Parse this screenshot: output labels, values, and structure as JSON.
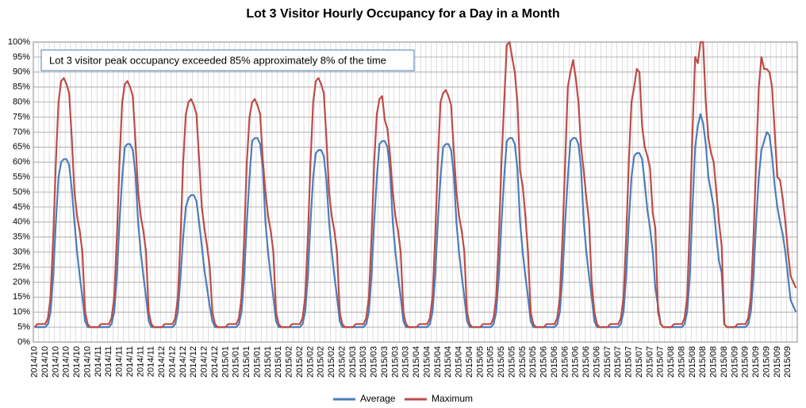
{
  "chart_data": {
    "type": "line",
    "title": "Lot 3 Visitor Hourly Occupancy for a Day in a Month",
    "annotation": "Lot 3 visitor peak occupancy exceeded 85% approximately 8% of the time",
    "categories": [
      "2014/10",
      null,
      null,
      null,
      "2014/10",
      null,
      null,
      null,
      "2014/10",
      null,
      null,
      null,
      "2014/10",
      null,
      null,
      null,
      "2014/10",
      null,
      null,
      null,
      "2014/10",
      null,
      null,
      null,
      "2014/11",
      null,
      null,
      null,
      "2014/11",
      null,
      null,
      null,
      "2014/11",
      null,
      null,
      null,
      "2014/11",
      null,
      null,
      null,
      "2014/11",
      null,
      null,
      null,
      "2014/11",
      null,
      null,
      null,
      "2014/12",
      null,
      null,
      null,
      "2014/12",
      null,
      null,
      null,
      "2014/12",
      null,
      null,
      null,
      "2014/12",
      null,
      null,
      null,
      "2014/12",
      null,
      null,
      null,
      "2014/12",
      null,
      null,
      null,
      "2015/01",
      null,
      null,
      null,
      "2015/01",
      null,
      null,
      null,
      "2015/01",
      null,
      null,
      null,
      "2015/01",
      null,
      null,
      null,
      "2015/01",
      null,
      null,
      null,
      "2015/01",
      null,
      null,
      null,
      "2015/02",
      null,
      null,
      null,
      "2015/02",
      null,
      null,
      null,
      "2015/02",
      null,
      null,
      null,
      "2015/02",
      null,
      null,
      null,
      "2015/02",
      null,
      null,
      null,
      "2015/02",
      null,
      null,
      null,
      "2015/03",
      null,
      null,
      null,
      "2015/03",
      null,
      null,
      null,
      "2015/03",
      null,
      null,
      null,
      "2015/03",
      null,
      null,
      null,
      "2015/03",
      null,
      null,
      null,
      "2015/03",
      null,
      null,
      null,
      "2015/04",
      null,
      null,
      null,
      "2015/04",
      null,
      null,
      null,
      "2015/04",
      null,
      null,
      null,
      "2015/04",
      null,
      null,
      null,
      "2015/04",
      null,
      null,
      null,
      "2015/04",
      null,
      null,
      null,
      "2015/05",
      null,
      null,
      null,
      "2015/05",
      null,
      null,
      null,
      "2015/05",
      null,
      null,
      null,
      "2015/05",
      null,
      null,
      null,
      "2015/05",
      null,
      null,
      null,
      "2015/05",
      null,
      null,
      null,
      "2015/06",
      null,
      null,
      null,
      "2015/06",
      null,
      null,
      null,
      "2015/06",
      null,
      null,
      null,
      "2015/06",
      null,
      null,
      null,
      "2015/06",
      null,
      null,
      null,
      "2015/06",
      null,
      null,
      null,
      "2015/07",
      null,
      null,
      null,
      "2015/07",
      null,
      null,
      null,
      "2015/07",
      null,
      null,
      null,
      "2015/07",
      null,
      null,
      null,
      "2015/07",
      null,
      null,
      null,
      "2015/07",
      null,
      null,
      null,
      "2015/08",
      null,
      null,
      null,
      "2015/08",
      null,
      null,
      null,
      "2015/08",
      null,
      null,
      null,
      "2015/08",
      null,
      null,
      null,
      "2015/08",
      null,
      null,
      null,
      "2015/08",
      null,
      null,
      null,
      "2015/09",
      null,
      null,
      null,
      "2015/09",
      null,
      null,
      null,
      "2015/09",
      null,
      null,
      null,
      "2015/09",
      null,
      null,
      null,
      "2015/09",
      null,
      null,
      null,
      "2015/09",
      null,
      null,
      null
    ],
    "series": [
      {
        "name": "Average",
        "color": "#4a7ebb",
        "values": [
          5,
          5,
          5,
          5,
          5,
          6,
          10,
          22,
          40,
          55,
          60,
          61,
          61,
          59,
          51,
          40,
          30,
          22,
          15,
          7,
          5,
          5,
          5,
          5,
          5,
          5,
          5,
          5,
          5,
          6,
          10,
          22,
          40,
          55,
          65,
          66,
          66,
          64,
          56,
          40,
          30,
          22,
          15,
          7,
          5,
          5,
          5,
          5,
          5,
          5,
          5,
          5,
          5,
          6,
          10,
          22,
          35,
          45,
          48,
          49,
          49,
          47,
          40,
          32,
          24,
          18,
          12,
          7,
          5,
          5,
          5,
          5,
          5,
          5,
          5,
          5,
          5,
          6,
          10,
          22,
          40,
          55,
          67,
          68,
          68,
          66,
          58,
          40,
          30,
          22,
          15,
          7,
          5,
          5,
          5,
          5,
          5,
          5,
          5,
          5,
          5,
          6,
          10,
          22,
          40,
          55,
          63,
          64,
          64,
          62,
          54,
          40,
          30,
          22,
          15,
          7,
          5,
          5,
          5,
          5,
          5,
          5,
          5,
          5,
          5,
          6,
          10,
          22,
          40,
          55,
          66,
          67,
          67,
          65,
          57,
          40,
          30,
          22,
          15,
          7,
          5,
          5,
          5,
          5,
          5,
          5,
          5,
          5,
          5,
          6,
          10,
          22,
          40,
          55,
          65,
          66,
          66,
          64,
          56,
          40,
          30,
          22,
          15,
          7,
          5,
          5,
          5,
          5,
          5,
          5,
          5,
          5,
          5,
          6,
          10,
          22,
          40,
          55,
          67,
          68,
          68,
          66,
          58,
          40,
          30,
          22,
          15,
          7,
          5,
          5,
          5,
          5,
          5,
          5,
          5,
          5,
          5,
          6,
          10,
          22,
          40,
          55,
          67,
          68,
          68,
          66,
          58,
          40,
          30,
          22,
          15,
          7,
          5,
          5,
          5,
          5,
          5,
          5,
          5,
          5,
          5,
          6,
          10,
          22,
          40,
          55,
          62,
          63,
          63,
          61,
          53,
          44,
          38,
          30,
          18,
          12,
          6,
          5,
          5,
          5,
          5,
          5,
          5,
          5,
          5,
          6,
          10,
          22,
          45,
          65,
          72,
          76,
          73,
          66,
          55,
          50,
          45,
          35,
          27,
          23,
          6,
          5,
          5,
          5,
          5,
          5,
          5,
          5,
          5,
          6,
          10,
          22,
          40,
          55,
          64,
          67,
          70,
          69,
          62,
          52,
          45,
          40,
          36,
          30,
          22,
          14,
          12,
          10
        ]
      },
      {
        "name": "Maximum",
        "color": "#be4b48",
        "values": [
          5,
          6,
          6,
          6,
          6,
          8,
          15,
          35,
          60,
          80,
          87,
          88,
          86,
          83,
          68,
          50,
          42,
          37,
          30,
          10,
          6,
          5,
          5,
          5,
          5,
          6,
          6,
          6,
          6,
          8,
          15,
          35,
          60,
          80,
          86,
          87,
          85,
          82,
          67,
          50,
          42,
          37,
          30,
          10,
          6,
          5,
          5,
          5,
          5,
          6,
          6,
          6,
          6,
          8,
          15,
          35,
          60,
          76,
          80,
          81,
          79,
          76,
          61,
          45,
          38,
          32,
          25,
          10,
          6,
          5,
          5,
          5,
          5,
          6,
          6,
          6,
          6,
          8,
          15,
          35,
          60,
          75,
          80,
          81,
          79,
          76,
          61,
          50,
          42,
          37,
          30,
          10,
          6,
          5,
          5,
          5,
          5,
          6,
          6,
          6,
          6,
          8,
          15,
          35,
          60,
          80,
          87,
          88,
          86,
          83,
          68,
          50,
          42,
          37,
          30,
          10,
          6,
          5,
          5,
          5,
          5,
          6,
          6,
          6,
          6,
          8,
          15,
          35,
          60,
          76,
          81,
          82,
          74,
          71,
          62,
          50,
          42,
          37,
          30,
          10,
          6,
          5,
          5,
          5,
          5,
          6,
          6,
          6,
          6,
          8,
          15,
          35,
          60,
          80,
          83,
          84,
          82,
          79,
          64,
          50,
          42,
          37,
          30,
          10,
          6,
          5,
          5,
          5,
          5,
          6,
          6,
          6,
          6,
          8,
          15,
          35,
          60,
          80,
          99,
          100,
          95,
          90,
          80,
          57,
          52,
          42,
          30,
          10,
          6,
          5,
          5,
          5,
          5,
          6,
          6,
          6,
          6,
          8,
          15,
          35,
          60,
          85,
          90,
          94,
          88,
          80,
          65,
          57,
          48,
          40,
          20,
          10,
          6,
          5,
          5,
          5,
          5,
          6,
          6,
          6,
          6,
          8,
          15,
          35,
          60,
          80,
          85,
          91,
          90,
          72,
          65,
          62,
          58,
          43,
          38,
          10,
          6,
          5,
          5,
          5,
          5,
          6,
          6,
          6,
          6,
          8,
          15,
          40,
          70,
          95,
          93,
          100,
          100,
          80,
          68,
          63,
          60,
          50,
          40,
          32,
          6,
          5,
          5,
          5,
          5,
          6,
          6,
          6,
          6,
          8,
          15,
          35,
          60,
          85,
          95,
          91,
          91,
          90,
          85,
          70,
          55,
          54,
          48,
          40,
          30,
          22,
          20,
          18
        ]
      }
    ],
    "ylim": [
      0,
      100
    ],
    "yticks": [
      {
        "value": 0,
        "label": "0%"
      },
      {
        "value": 5,
        "label": "5%"
      },
      {
        "value": 10,
        "label": "10%"
      },
      {
        "value": 15,
        "label": "15%"
      },
      {
        "value": 20,
        "label": "20%"
      },
      {
        "value": 25,
        "label": "25%"
      },
      {
        "value": 30,
        "label": "30%"
      },
      {
        "value": 35,
        "label": "35%"
      },
      {
        "value": 40,
        "label": "40%"
      },
      {
        "value": 45,
        "label": "45%"
      },
      {
        "value": 50,
        "label": "50%"
      },
      {
        "value": 55,
        "label": "55%"
      },
      {
        "value": 60,
        "label": "60%"
      },
      {
        "value": 65,
        "label": "65%"
      },
      {
        "value": 70,
        "label": "70%"
      },
      {
        "value": 75,
        "label": "75%"
      },
      {
        "value": 80,
        "label": "80%"
      },
      {
        "value": 85,
        "label": "85%"
      },
      {
        "value": 90,
        "label": "90%"
      },
      {
        "value": 95,
        "label": "95%"
      },
      {
        "value": 100,
        "label": "100%"
      }
    ],
    "grid": true,
    "legend": "bottom"
  }
}
